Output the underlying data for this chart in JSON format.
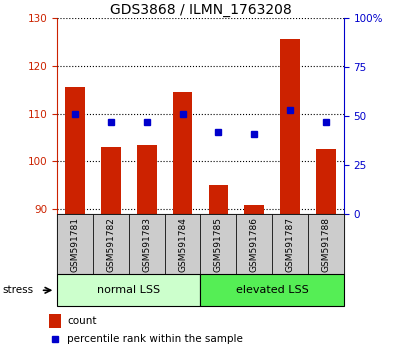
{
  "title": "GDS3868 / ILMN_1763208",
  "samples": [
    "GSM591781",
    "GSM591782",
    "GSM591783",
    "GSM591784",
    "GSM591785",
    "GSM591786",
    "GSM591787",
    "GSM591788"
  ],
  "counts": [
    115.5,
    103.0,
    103.5,
    114.5,
    95.0,
    91.0,
    125.5,
    102.5
  ],
  "percentile_ranks": [
    51,
    47,
    47,
    51,
    42,
    41,
    53,
    47
  ],
  "ylim_left": [
    89,
    130
  ],
  "ylim_right": [
    0,
    100
  ],
  "yticks_left": [
    90,
    100,
    110,
    120,
    130
  ],
  "yticks_right": [
    0,
    25,
    50,
    75,
    100
  ],
  "groups": [
    {
      "label": "normal LSS",
      "indices": [
        0,
        1,
        2,
        3
      ],
      "color": "#ccffcc"
    },
    {
      "label": "elevated LSS",
      "indices": [
        4,
        5,
        6,
        7
      ],
      "color": "#55ee55"
    }
  ],
  "bar_color": "#cc2200",
  "dot_color": "#0000cc",
  "bar_bottom": 89,
  "stress_label": "stress",
  "legend_count_label": "count",
  "legend_pct_label": "percentile rank within the sample",
  "left_axis_color": "#cc2200",
  "right_axis_color": "#0000cc",
  "grid_color": "black",
  "background_color": "white",
  "tick_area_color": "#cccccc"
}
